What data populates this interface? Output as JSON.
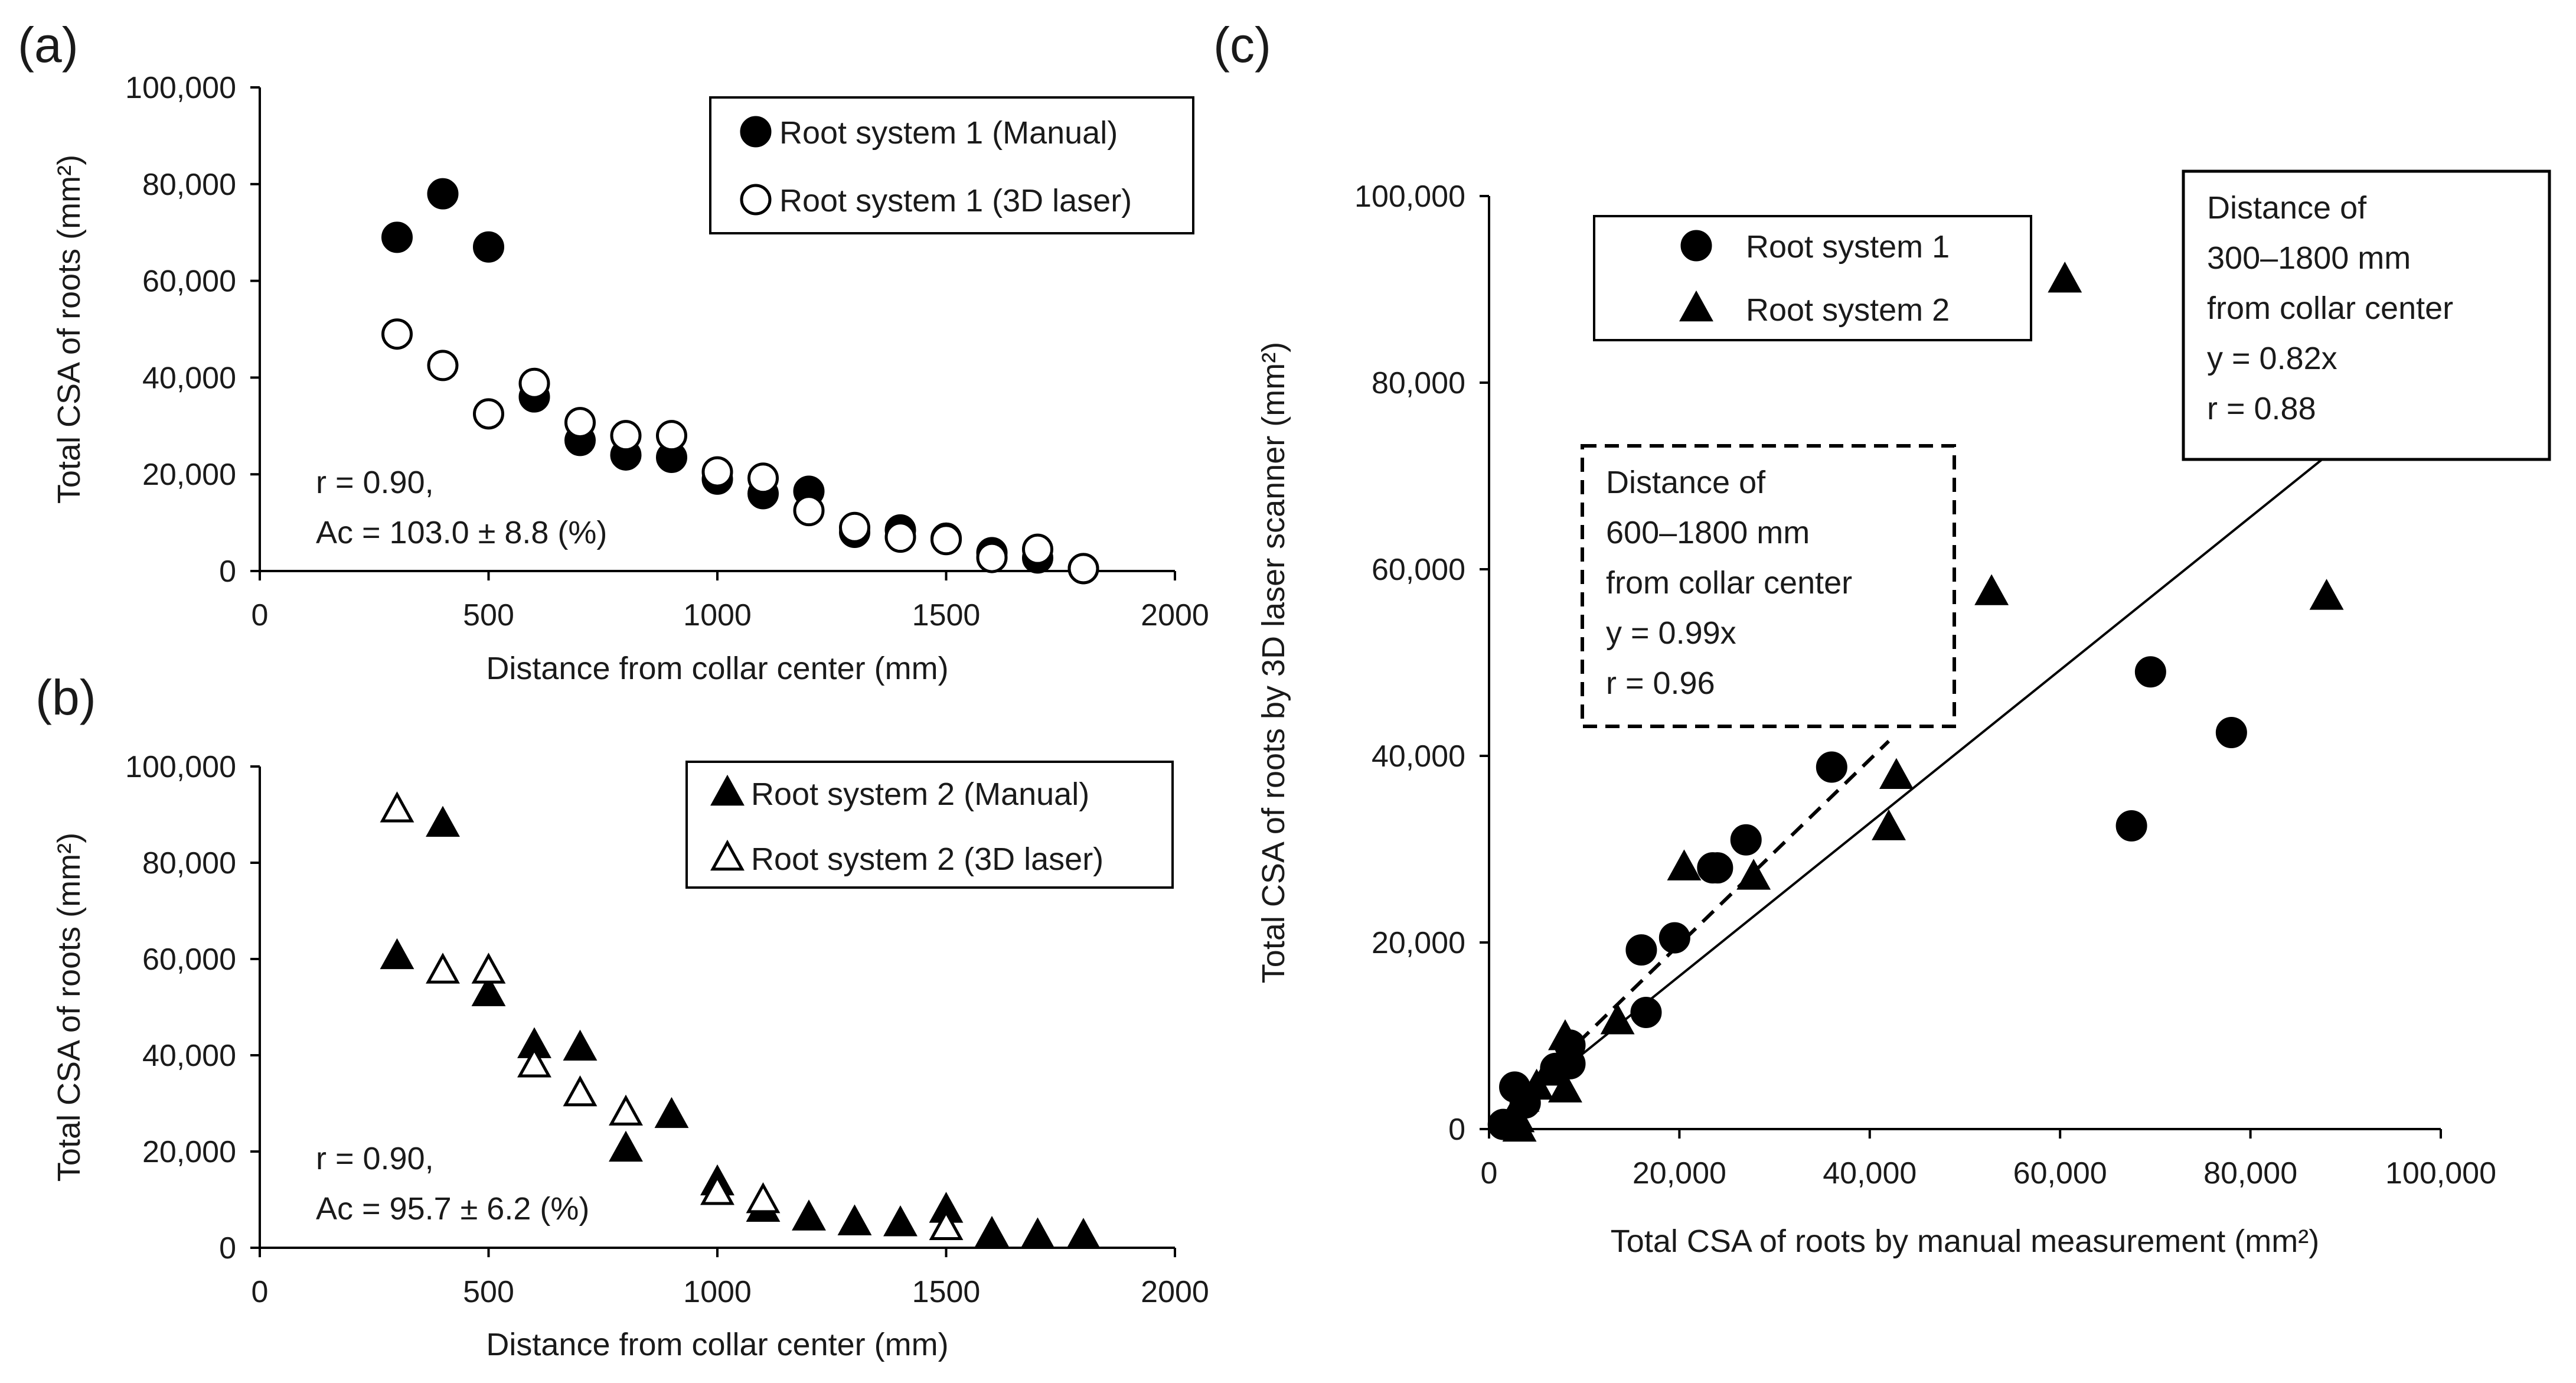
{
  "chart_data": [
    {
      "panel": "(a)",
      "type": "scatter",
      "xlabel": "Distance from collar center (mm)",
      "ylabel": "Total CSA of roots (mm²)",
      "xlim": [
        0,
        2000
      ],
      "ylim": [
        0,
        100000
      ],
      "xticks": [
        0,
        500,
        1000,
        1500,
        2000
      ],
      "xtick_labels": [
        "0",
        "500",
        "1000",
        "1500",
        "2000"
      ],
      "yticks": [
        0,
        20000,
        40000,
        60000,
        80000,
        100000
      ],
      "ytick_labels": [
        "0",
        "20,000",
        "40,000",
        "60,000",
        "80,000",
        "100,000"
      ],
      "legend_position": "top-right",
      "series": [
        {
          "name": "Root system 1 (Manual)",
          "marker": "filled-circle",
          "points": [
            [
              300,
              69000
            ],
            [
              400,
              78000
            ],
            [
              500,
              67000
            ],
            [
              600,
              36000
            ],
            [
              700,
              27000
            ],
            [
              800,
              24000
            ],
            [
              900,
              23500
            ],
            [
              1000,
              19000
            ],
            [
              1100,
              16000
            ],
            [
              1200,
              16500
            ],
            [
              1300,
              8000
            ],
            [
              1400,
              8500
            ],
            [
              1500,
              6800
            ],
            [
              1600,
              3800
            ],
            [
              1700,
              2700
            ],
            [
              1800,
              500
            ]
          ]
        },
        {
          "name": "Root system 1 (3D laser)",
          "marker": "open-circle",
          "points": [
            [
              300,
              49000
            ],
            [
              400,
              42500
            ],
            [
              500,
              32500
            ],
            [
              600,
              38800
            ],
            [
              700,
              30700
            ],
            [
              800,
              28000
            ],
            [
              900,
              28000
            ],
            [
              1000,
              20500
            ],
            [
              1100,
              19200
            ],
            [
              1200,
              12500
            ],
            [
              1300,
              9000
            ],
            [
              1400,
              7000
            ],
            [
              1500,
              6500
            ],
            [
              1600,
              2800
            ],
            [
              1700,
              4500
            ],
            [
              1800,
              500
            ]
          ]
        }
      ],
      "annotation": [
        "r = 0.90,",
        "Ac = 103.0 ± 8.8 (%)"
      ]
    },
    {
      "panel": "(b)",
      "type": "scatter",
      "xlabel": "Distance from collar center (mm)",
      "ylabel": "Total CSA of roots (mm²)",
      "xlim": [
        0,
        2000
      ],
      "ylim": [
        0,
        100000
      ],
      "xticks": [
        0,
        500,
        1000,
        1500,
        2000
      ],
      "xtick_labels": [
        "0",
        "500",
        "1000",
        "1500",
        "2000"
      ],
      "yticks": [
        0,
        20000,
        40000,
        60000,
        80000,
        100000
      ],
      "ytick_labels": [
        "0",
        "20,000",
        "40,000",
        "60,000",
        "80,000",
        "100,000"
      ],
      "legend_position": "top-right",
      "series": [
        {
          "name": "Root system 2 (Manual)",
          "marker": "filled-triangle",
          "points": [
            [
              300,
              60500
            ],
            [
              400,
              88000
            ],
            [
              500,
              52800
            ],
            [
              600,
              42000
            ],
            [
              700,
              41500
            ],
            [
              800,
              20500
            ],
            [
              900,
              27500
            ],
            [
              1000,
              13500
            ],
            [
              1100,
              8000
            ],
            [
              1200,
              6200
            ],
            [
              1300,
              5200
            ],
            [
              1400,
              5000
            ],
            [
              1500,
              7800
            ],
            [
              1600,
              2800
            ],
            [
              1700,
              2500
            ],
            [
              1800,
              2400
            ]
          ]
        },
        {
          "name": "Root system 2 (3D laser)",
          "marker": "open-triangle",
          "points": [
            [
              300,
              91000
            ],
            [
              400,
              57500
            ],
            [
              500,
              57500
            ],
            [
              600,
              38000
            ],
            [
              700,
              32000
            ],
            [
              800,
              28000
            ],
            [
              1000,
              11500
            ],
            [
              1100,
              9800
            ],
            [
              1500,
              4200
            ]
          ]
        }
      ],
      "annotation": [
        "r = 0.90,",
        "Ac = 95.7 ± 6.2 (%)"
      ]
    },
    {
      "panel": "(c)",
      "type": "scatter",
      "xlabel": "Total CSA of roots by manual measurement (mm²)",
      "ylabel": "Total CSA of roots by 3D laser scanner (mm²)",
      "xlim": [
        0,
        100000
      ],
      "ylim": [
        0,
        100000
      ],
      "xticks": [
        0,
        20000,
        40000,
        60000,
        80000,
        100000
      ],
      "xtick_labels": [
        "0",
        "20,000",
        "40,000",
        "60,000",
        "80,000",
        "100,000"
      ],
      "yticks": [
        0,
        20000,
        40000,
        60000,
        80000,
        100000
      ],
      "ytick_labels": [
        "0",
        "20,000",
        "40,000",
        "60,000",
        "80,000",
        "100,000"
      ],
      "legend_position": "top-left",
      "series": [
        {
          "name": "Root system 1",
          "marker": "filled-circle",
          "points": [
            [
              69500,
              49000
            ],
            [
              78000,
              42500
            ],
            [
              67500,
              32500
            ],
            [
              36000,
              38800
            ],
            [
              27000,
              31000
            ],
            [
              24000,
              28000
            ],
            [
              23500,
              28000
            ],
            [
              19500,
              20500
            ],
            [
              16000,
              19200
            ],
            [
              16500,
              12500
            ],
            [
              8500,
              9000
            ],
            [
              8500,
              7000
            ],
            [
              7000,
              6500
            ],
            [
              3800,
              2800
            ],
            [
              2700,
              4500
            ],
            [
              1500,
              500
            ]
          ]
        },
        {
          "name": "Root system 2",
          "marker": "filled-triangle",
          "points": [
            [
              60500,
              91000
            ],
            [
              88000,
              57000
            ],
            [
              52800,
              57500
            ],
            [
              42000,
              32300
            ],
            [
              42800,
              37800
            ],
            [
              20500,
              28000
            ],
            [
              27800,
              27000
            ],
            [
              13500,
              11500
            ],
            [
              8000,
              9800
            ],
            [
              8000,
              4200
            ],
            [
              6200,
              6000
            ],
            [
              5000,
              4500
            ],
            [
              3500,
              3200
            ],
            [
              3000,
              1000
            ],
            [
              2400,
              500
            ],
            [
              3200,
              0
            ]
          ]
        }
      ],
      "fit_lines": [
        {
          "style": "solid",
          "slope": 0.82,
          "x_range": [
            0,
            88000
          ],
          "label": [
            "Distance of",
            "300–1800 mm",
            "from collar center",
            "y = 0.82x",
            "r = 0.88"
          ]
        },
        {
          "style": "dashed",
          "slope": 0.99,
          "x_range": [
            0,
            42000
          ],
          "label": [
            "Distance of",
            "600–1800 mm",
            "from collar center",
            "y = 0.99x",
            "r = 0.96"
          ]
        }
      ]
    }
  ]
}
